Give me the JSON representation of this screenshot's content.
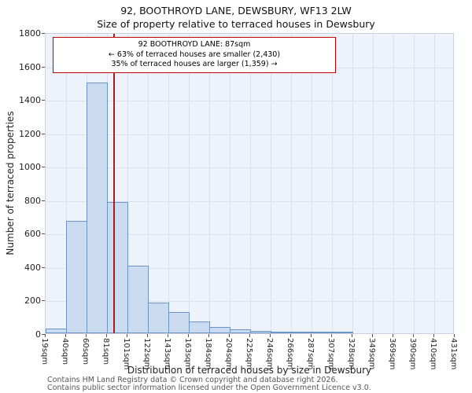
{
  "chart_data": {
    "type": "bar",
    "title": "92, BOOTHROYD LANE, DEWSBURY, WF13 2LW",
    "subtitle": "Size of property relative to terraced houses in Dewsbury",
    "xlabel": "Distribution of terraced houses by size in Dewsbury",
    "ylabel": "Number of terraced properties",
    "ylim": [
      0,
      1800
    ],
    "ytick_step": 200,
    "grid": true,
    "legend": "none",
    "bin_edges_sqm": [
      19,
      40,
      60,
      81,
      101,
      122,
      143,
      163,
      184,
      204,
      225,
      246,
      266,
      287,
      307,
      328,
      349,
      369,
      390,
      410,
      431
    ],
    "x_tick_labels": [
      "19sqm",
      "40sqm",
      "60sqm",
      "81sqm",
      "101sqm",
      "122sqm",
      "143sqm",
      "163sqm",
      "184sqm",
      "204sqm",
      "225sqm",
      "246sqm",
      "266sqm",
      "287sqm",
      "307sqm",
      "328sqm",
      "349sqm",
      "369sqm",
      "390sqm",
      "410sqm",
      "431sqm"
    ],
    "values": [
      30,
      670,
      1500,
      785,
      405,
      185,
      125,
      70,
      40,
      25,
      12,
      8,
      5,
      3,
      8,
      0,
      0,
      0,
      0,
      0
    ],
    "bar_fill_color": "#cbdcf1",
    "bar_border_color": "#6b94c8",
    "plot_bg_color": "#eef2fa",
    "marker_value_sqm": 87,
    "marker_color": "#a81e1e"
  },
  "annotation": {
    "line1": "92 BOOTHROYD LANE: 87sqm",
    "line2": "← 63% of terraced houses are smaller (2,430)",
    "line3": "35% of terraced houses are larger (1,359) →",
    "border_color": "#c00000"
  },
  "footer": {
    "line1": "Contains HM Land Registry data © Crown copyright and database right 2026.",
    "line2": "Contains public sector information licensed under the Open Government Licence v3.0."
  }
}
